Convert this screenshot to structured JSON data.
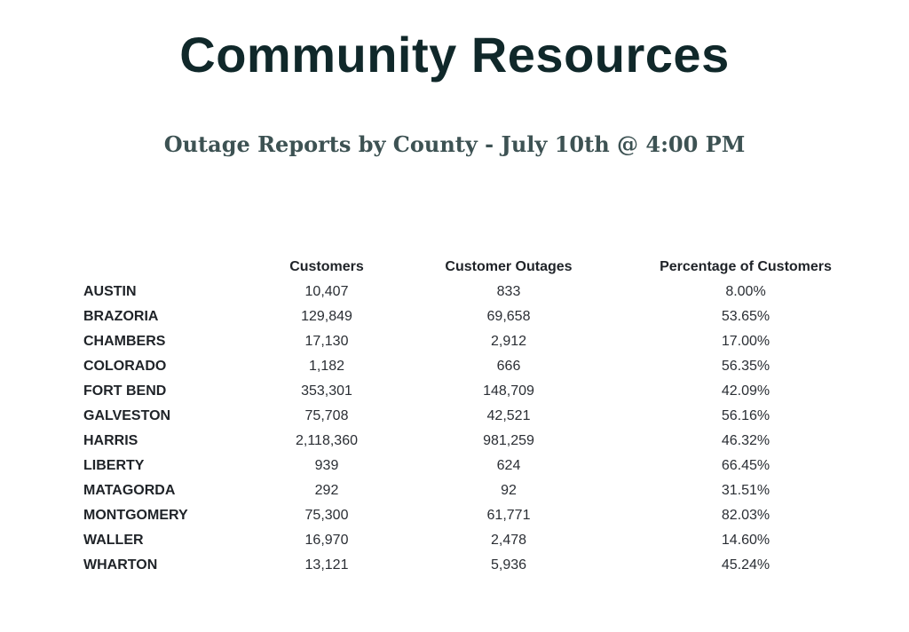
{
  "header": {
    "title": "Community Resources",
    "subtitle": "Outage Reports by County - July 10th @ 4:00 PM"
  },
  "table": {
    "columns": [
      "",
      "Customers",
      "Customer Outages",
      "Percentage of Customers"
    ],
    "rows": [
      {
        "county": "AUSTIN",
        "customers": "10,407",
        "outages": "833",
        "percent": "8.00%"
      },
      {
        "county": "BRAZORIA",
        "customers": "129,849",
        "outages": "69,658",
        "percent": "53.65%"
      },
      {
        "county": "CHAMBERS",
        "customers": "17,130",
        "outages": "2,912",
        "percent": "17.00%"
      },
      {
        "county": "COLORADO",
        "customers": "1,182",
        "outages": "666",
        "percent": "56.35%"
      },
      {
        "county": "FORT BEND",
        "customers": "353,301",
        "outages": "148,709",
        "percent": "42.09%"
      },
      {
        "county": "GALVESTON",
        "customers": "75,708",
        "outages": "42,521",
        "percent": "56.16%"
      },
      {
        "county": "HARRIS",
        "customers": "2,118,360",
        "outages": "981,259",
        "percent": "46.32%"
      },
      {
        "county": "LIBERTY",
        "customers": "939",
        "outages": "624",
        "percent": "66.45%"
      },
      {
        "county": "MATAGORDA",
        "customers": "292",
        "outages": "92",
        "percent": "31.51%"
      },
      {
        "county": "MONTGOMERY",
        "customers": "75,300",
        "outages": "61,771",
        "percent": "82.03%"
      },
      {
        "county": "WALLER",
        "customers": "16,970",
        "outages": "2,478",
        "percent": "14.60%"
      },
      {
        "county": "WHARTON",
        "customers": "13,121",
        "outages": "5,936",
        "percent": "45.24%"
      }
    ]
  }
}
